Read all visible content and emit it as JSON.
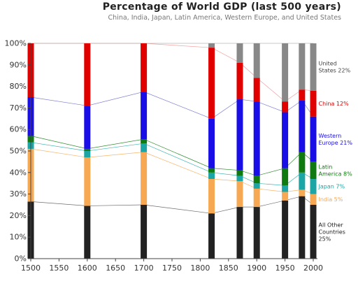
{
  "chart_data": {
    "type": "bar",
    "title": "Percentage of World GDP (last 500 years)",
    "subtitle": "China, India, Japan, Latin America, Western Europe, and United States",
    "x": [
      1500,
      1600,
      1700,
      1820,
      1870,
      1900,
      1950,
      1980,
      2000
    ],
    "x_ticks": [
      1500,
      1550,
      1600,
      1650,
      1700,
      1750,
      1800,
      1850,
      1900,
      1950,
      2000
    ],
    "xlim": [
      1500,
      2000
    ],
    "ylim": [
      0,
      100
    ],
    "y_ticks": [
      0,
      10,
      20,
      30,
      40,
      50,
      60,
      70,
      80,
      90,
      100
    ],
    "y_tick_suffix": "%",
    "stacked": true,
    "grid": false,
    "series": [
      {
        "name": "All Other Countries",
        "label": "All Other Countries 25%",
        "color": "#222222",
        "line_color": "#555555",
        "values": [
          26.5,
          24.5,
          25,
          21,
          24,
          24,
          27,
          29,
          25
        ]
      },
      {
        "name": "India",
        "label": "India 5%",
        "color": "#f7a852",
        "line_color": "#f7a852",
        "values": [
          24.5,
          22.5,
          24.5,
          16,
          12,
          8.5,
          4,
          3,
          5
        ]
      },
      {
        "name": "Japan",
        "label": "Japan 7%",
        "color": "#1ba5a5",
        "line_color": "#1ba5a5",
        "values": [
          3,
          3,
          4,
          3,
          2.5,
          2.5,
          3,
          8,
          7
        ]
      },
      {
        "name": "Latin America",
        "label": "Latin America 8%",
        "color": "#0f7a0f",
        "line_color": "#0f7a0f",
        "values": [
          3,
          1,
          2,
          2,
          2.5,
          3.5,
          8,
          9.5,
          8
        ]
      },
      {
        "name": "Western Europe",
        "label": "Western Europe 21%",
        "color": "#1a0ee6",
        "line_color": "#6a6acc",
        "values": [
          18,
          20,
          22,
          23,
          33,
          34.5,
          26,
          24,
          21
        ]
      },
      {
        "name": "China",
        "label": "China 12%",
        "color": "#e00000",
        "line_color": "#f09090",
        "values": [
          25,
          29,
          22.5,
          33,
          17,
          11,
          5,
          5,
          12
        ]
      },
      {
        "name": "United States",
        "label": "United States 22%",
        "color": "#888888",
        "line_color": "#aaaaaa",
        "values": [
          0,
          0,
          0,
          2,
          9,
          16,
          27,
          21.5,
          22
        ]
      }
    ],
    "legend": "right-inline"
  }
}
